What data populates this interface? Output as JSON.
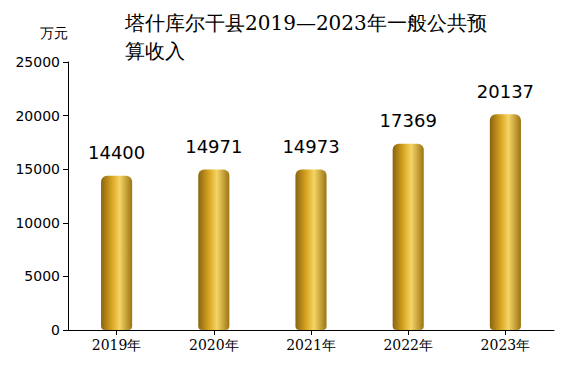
{
  "chart_data": {
    "type": "bar",
    "title": "塔什库尔干县2019—2023年一般公共预算收入",
    "y_label": "万元",
    "categories": [
      "2019年",
      "2020年",
      "2021年",
      "2022年",
      "2023年"
    ],
    "values": [
      14400,
      14971,
      14973,
      17369,
      20137
    ],
    "color": "#d9a521",
    "ylim": [
      0,
      25000
    ],
    "yticks": [
      0,
      5000,
      10000,
      15000,
      20000,
      25000
    ],
    "grid": false,
    "data_labels": true
  }
}
